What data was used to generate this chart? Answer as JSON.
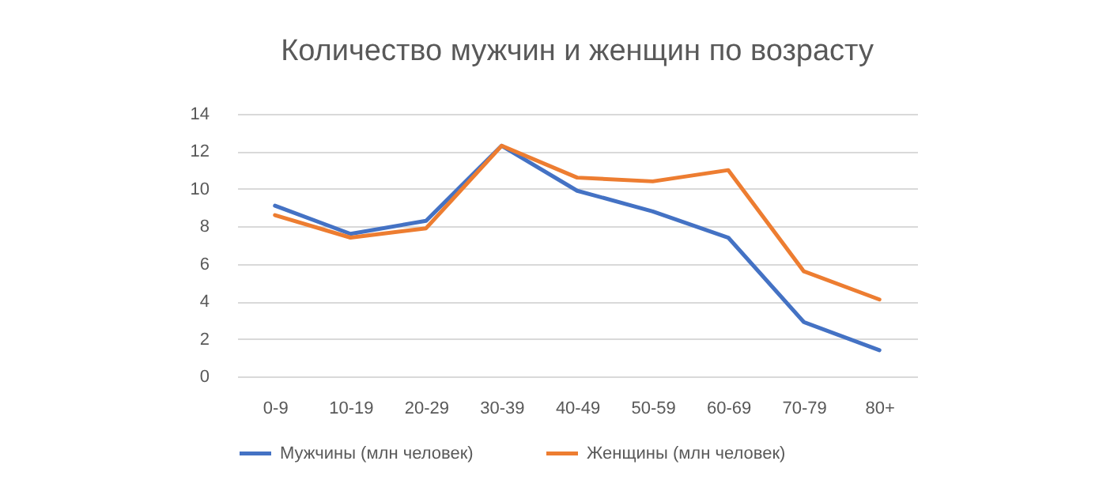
{
  "chart_data": {
    "type": "line",
    "title": "Количество мужчин и женщин по возрасту",
    "categories": [
      "0-9",
      "10-19",
      "20-29",
      "30-39",
      "40-49",
      "50-59",
      "60-69",
      "70-79",
      "80+"
    ],
    "series": [
      {
        "name": "Мужчины (млн человек)",
        "color": "#4472c4",
        "values": [
          9.1,
          7.6,
          8.3,
          12.3,
          9.9,
          8.8,
          7.4,
          2.9,
          1.4
        ]
      },
      {
        "name": "Женщины (млн человек)",
        "color": "#ed7d31",
        "values": [
          8.6,
          7.4,
          7.9,
          12.3,
          10.6,
          10.4,
          11.0,
          5.6,
          4.1
        ]
      }
    ],
    "ylim": [
      0,
      14
    ],
    "yticks": [
      0,
      2,
      4,
      6,
      8,
      10,
      12,
      14
    ],
    "grid": "y",
    "legend": "bottom",
    "marker": "none",
    "line_style": "solid"
  }
}
